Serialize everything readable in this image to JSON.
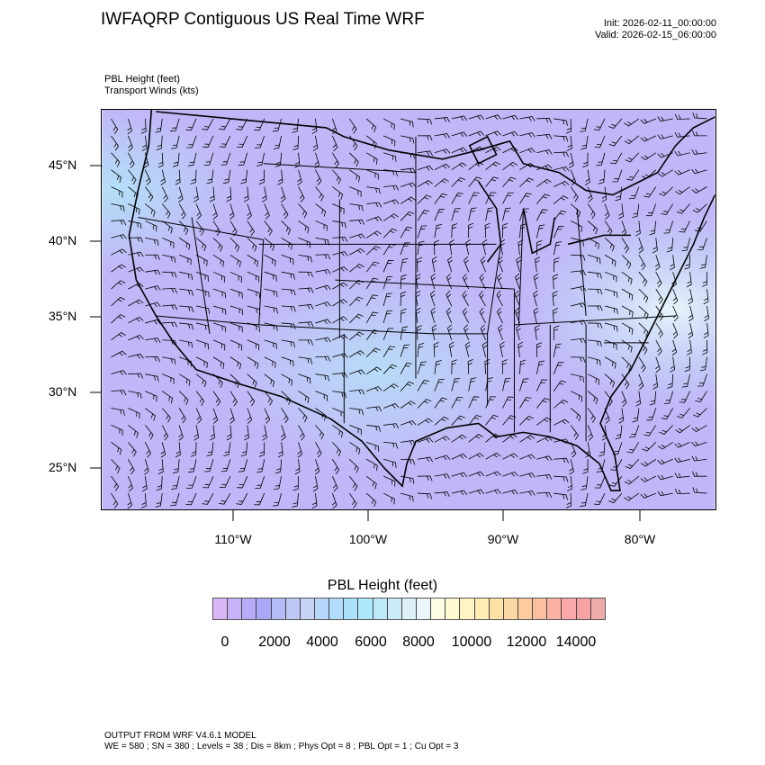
{
  "header": {
    "title": "IWFAQRP Contiguous US Real Time WRF",
    "init": "Init: 2026-02-11_00:00:00",
    "valid": "Valid: 2026-02-15_06:00:00",
    "field_label": "PBL Height   (feet)",
    "overlay_label": "Transport Winds   (kts)"
  },
  "map": {
    "region": "Contiguous US",
    "lat_labels": [
      "45°N",
      "40°N",
      "35°N",
      "30°N",
      "25°N"
    ],
    "lon_labels": [
      "110°W",
      "100°W",
      "90°W",
      "80°W"
    ],
    "dominant_colors": [
      "#c4b4f8",
      "#b8c4f8",
      "#b4e0f8"
    ]
  },
  "colorbar": {
    "title": "PBL Height  (feet)",
    "labels": [
      "0",
      "2000",
      "4000",
      "6000",
      "8000",
      "10000",
      "12000",
      "14000"
    ],
    "colors": [
      "#d8b6f8",
      "#c6b2f8",
      "#b8acf8",
      "#aaa8f6",
      "#b4bcf6",
      "#bec8f4",
      "#c6d2f6",
      "#b8d6fa",
      "#b2dcfc",
      "#aae2fc",
      "#ace8fa",
      "#bceaf8",
      "#cceaf6",
      "#dcf0f8",
      "#eaf6fa",
      "#fffce4",
      "#fffad0",
      "#fff4c2",
      "#ffecb2",
      "#fce2a4",
      "#fcd8a6",
      "#fccca0",
      "#fcc0a0",
      "#fcb2a2",
      "#fca8a8",
      "#f6a2a4",
      "#eeaaaa",
      "#f2b6b8",
      "#f6c8ca",
      "#fce2e4"
    ]
  },
  "footer": {
    "line1": "OUTPUT FROM WRF V4.6.1 MODEL",
    "line2": "WE = 580 ; SN = 380 ; Levels = 38 ; Dis = 8km ; Phys Opt = 8 ; PBL Opt = 1 ; Cu Opt = 3"
  }
}
